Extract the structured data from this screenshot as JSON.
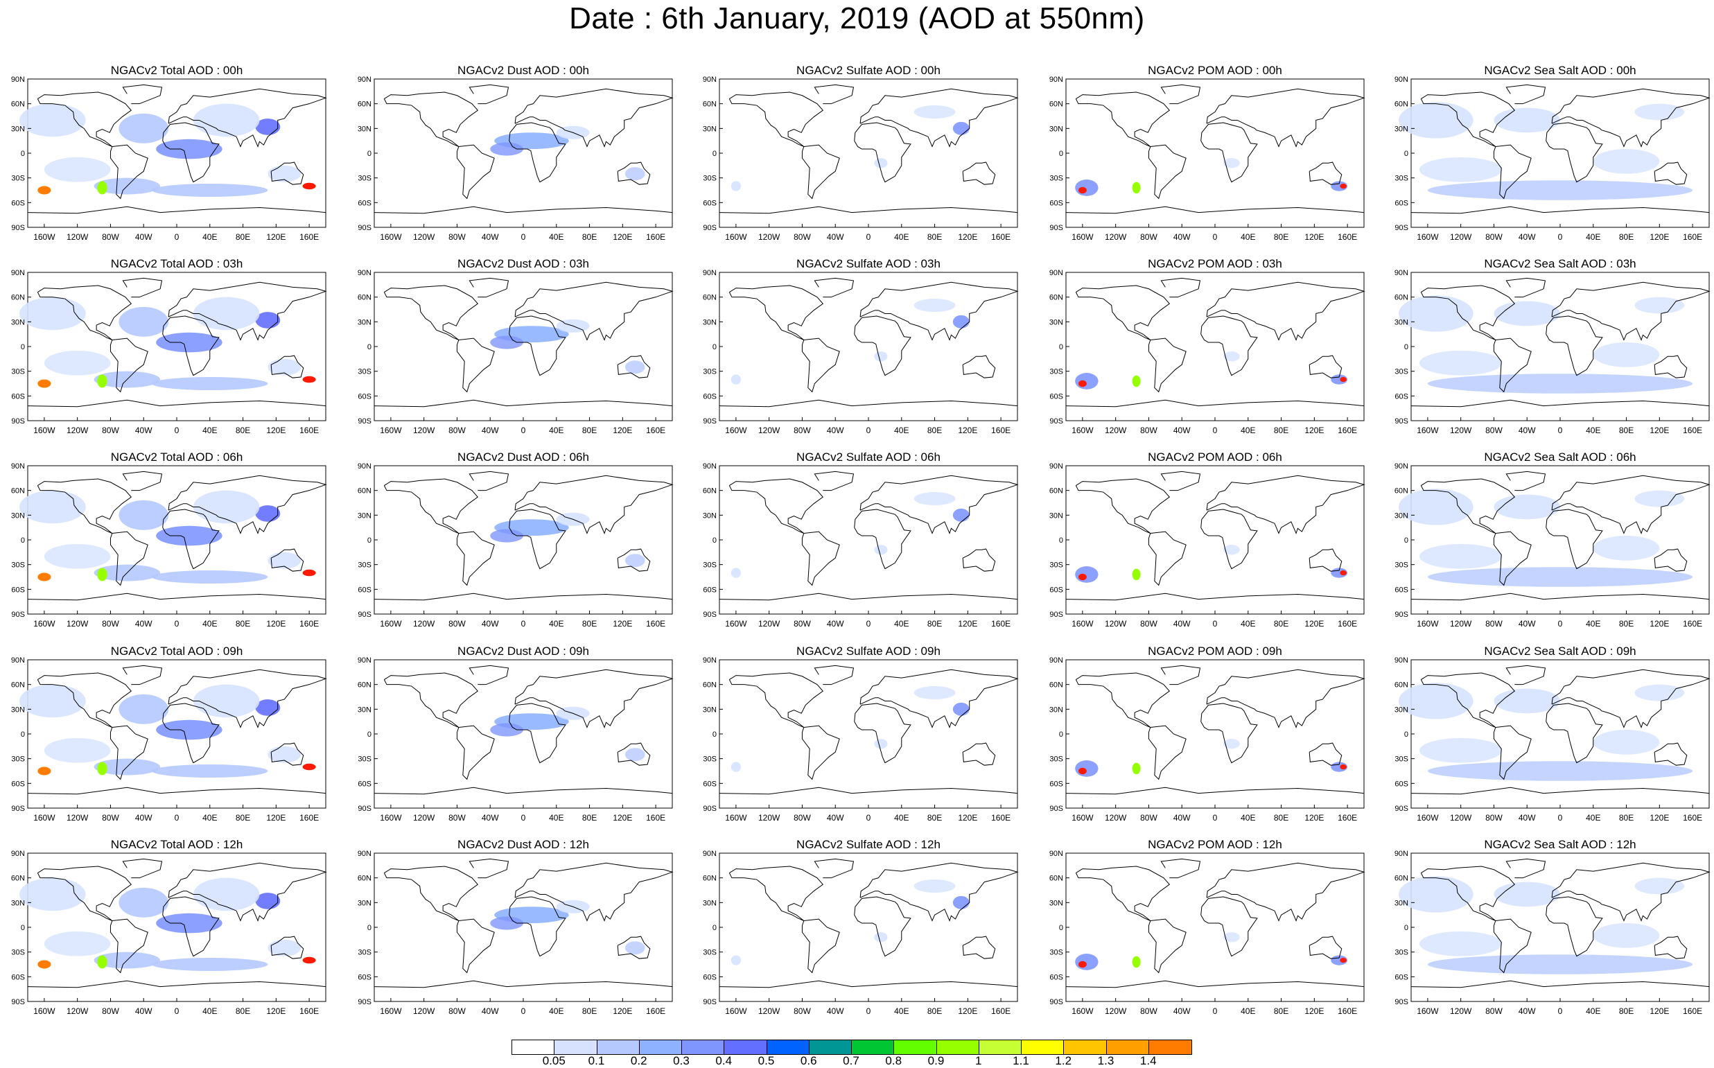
{
  "title": "Date : 6th January, 2019 (AOD at 550nm)",
  "panels": [
    [
      "NGACv2 Total AOD : 00h",
      "NGACv2 Dust AOD : 00h",
      "NGACv2 Sulfate AOD : 00h",
      "NGACv2 POM AOD : 00h",
      "NGACv2 Sea Salt AOD : 00h"
    ],
    [
      "NGACv2 Total AOD : 03h",
      "NGACv2 Dust AOD : 03h",
      "NGACv2 Sulfate AOD : 03h",
      "NGACv2 POM AOD : 03h",
      "NGACv2 Sea Salt AOD : 03h"
    ],
    [
      "NGACv2 Total AOD : 06h",
      "NGACv2 Dust AOD : 06h",
      "NGACv2 Sulfate AOD : 06h",
      "NGACv2 POM AOD : 06h",
      "NGACv2 Sea Salt AOD : 06h"
    ],
    [
      "NGACv2 Total AOD : 09h",
      "NGACv2 Dust AOD : 09h",
      "NGACv2 Sulfate AOD : 09h",
      "NGACv2 POM AOD : 09h",
      "NGACv2 Sea Salt  AOD : 09h"
    ],
    [
      "NGACv2 Total AOD : 12h",
      "NGACv2 Dust AOD : 12h",
      "NGACv2 Sulfate AOD : 12h",
      "NGACv2 POM  AOD : 12h",
      "NGACv2 Sea Salt  AOD : 12h"
    ]
  ],
  "lat_ticks": [
    "90N",
    "60N",
    "30N",
    "0",
    "30S",
    "60S",
    "90S"
  ],
  "lon_ticks": [
    "160W",
    "120W",
    "80W",
    "40W",
    "0",
    "40E",
    "80E",
    "120E",
    "160E"
  ],
  "colorbar": {
    "labels": [
      "0.05",
      "0.1",
      "0.2",
      "0.3",
      "0.4",
      "0.5",
      "0.6",
      "0.7",
      "0.8",
      "0.9",
      "1",
      "1.1",
      "1.2",
      "1.3",
      "1.4"
    ],
    "colors": [
      "#ffffff",
      "#d6e2ff",
      "#b5c9ff",
      "#8eb2ff",
      "#7f96ff",
      "#6370ff",
      "#0063ff",
      "#009696",
      "#00c633",
      "#63ff00",
      "#96ff00",
      "#c6ff33",
      "#ffff00",
      "#ffc600",
      "#ffa000",
      "#ff7c00",
      "#ff1900"
    ]
  }
}
